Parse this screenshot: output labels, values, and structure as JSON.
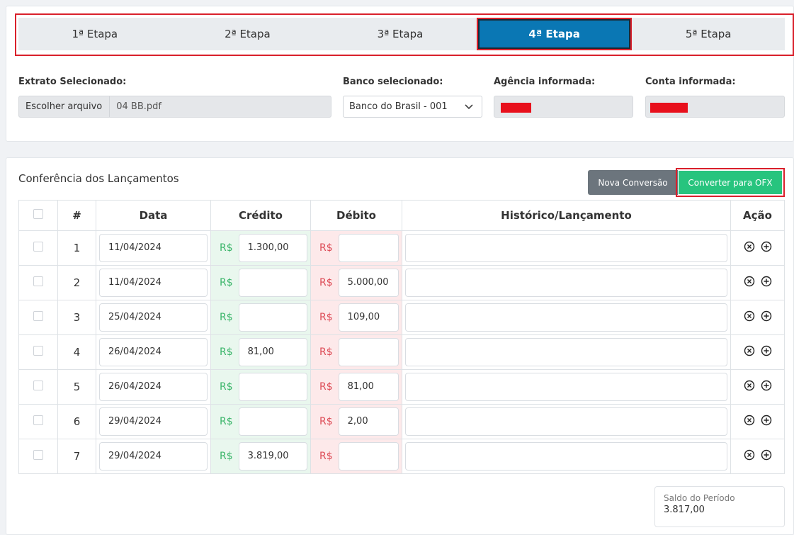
{
  "steps": [
    {
      "label": "1ª Etapa"
    },
    {
      "label": "2ª Etapa"
    },
    {
      "label": "3ª Etapa"
    },
    {
      "label": "4ª Etapa"
    },
    {
      "label": "5ª Etapa"
    }
  ],
  "active_step": 4,
  "form": {
    "extrato_label": "Extrato Selecionado:",
    "file_button": "Escolher arquivo",
    "file_name": "04 BB.pdf",
    "banco_label": "Banco selecionado:",
    "banco_value": "Banco do Brasil - 001",
    "agencia_label": "Agência informada:",
    "conta_label": "Conta informada:"
  },
  "conferencia": {
    "title": "Conferência dos Lançamentos",
    "btn_nova": "Nova Conversão",
    "btn_ofx": "Converter para OFX",
    "headers": {
      "num": "#",
      "data": "Data",
      "credito": "Crédito",
      "debito": "Débito",
      "historico": "Histórico/Lançamento",
      "acao": "Ação"
    },
    "currency": "R$",
    "rows": [
      {
        "num": "1",
        "data": "11/04/2024",
        "credito": "1.300,00",
        "debito": ""
      },
      {
        "num": "2",
        "data": "11/04/2024",
        "credito": "",
        "debito": "5.000,00"
      },
      {
        "num": "3",
        "data": "25/04/2024",
        "credito": "",
        "debito": "109,00"
      },
      {
        "num": "4",
        "data": "26/04/2024",
        "credito": "81,00",
        "debito": ""
      },
      {
        "num": "5",
        "data": "26/04/2024",
        "credito": "",
        "debito": "81,00"
      },
      {
        "num": "6",
        "data": "29/04/2024",
        "credito": "",
        "debito": "2,00"
      },
      {
        "num": "7",
        "data": "29/04/2024",
        "credito": "3.819,00",
        "debito": ""
      }
    ],
    "saldo_label": "Saldo do Período",
    "saldo_value": "3.817,00"
  },
  "colors": {
    "active_step": "#0a77b4",
    "highlight": "#d9202b",
    "credit_bg": "#e9f7ee",
    "debit_bg": "#fde9ea",
    "convert_button": "#27c47e"
  }
}
